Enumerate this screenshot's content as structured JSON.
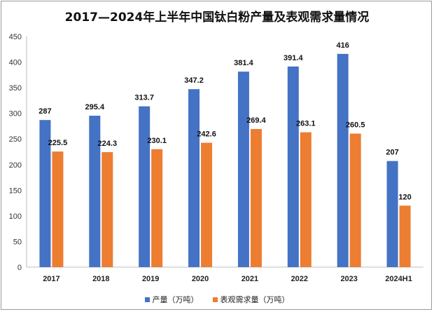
{
  "chart_data": {
    "type": "bar",
    "title": "2017—2024年上半年中国钛白粉产量及表观需求量情况",
    "categories": [
      "2017",
      "2018",
      "2019",
      "2020",
      "2021",
      "2022",
      "2023",
      "2024H1"
    ],
    "series": [
      {
        "name": "产量（万吨）",
        "color": "#4472C4",
        "values": [
          287,
          295.4,
          313.7,
          347.2,
          381.4,
          391.4,
          416,
          207
        ]
      },
      {
        "name": "表观需求量（万吨）",
        "color": "#ED7D31",
        "values": [
          225.5,
          224.3,
          230.1,
          242.6,
          269.4,
          263.1,
          260.5,
          120
        ]
      }
    ],
    "ylim": [
      0,
      450
    ],
    "yticks": [
      0,
      50,
      100,
      150,
      200,
      250,
      300,
      350,
      400,
      450
    ],
    "grid": false,
    "legend_position": "bottom"
  }
}
